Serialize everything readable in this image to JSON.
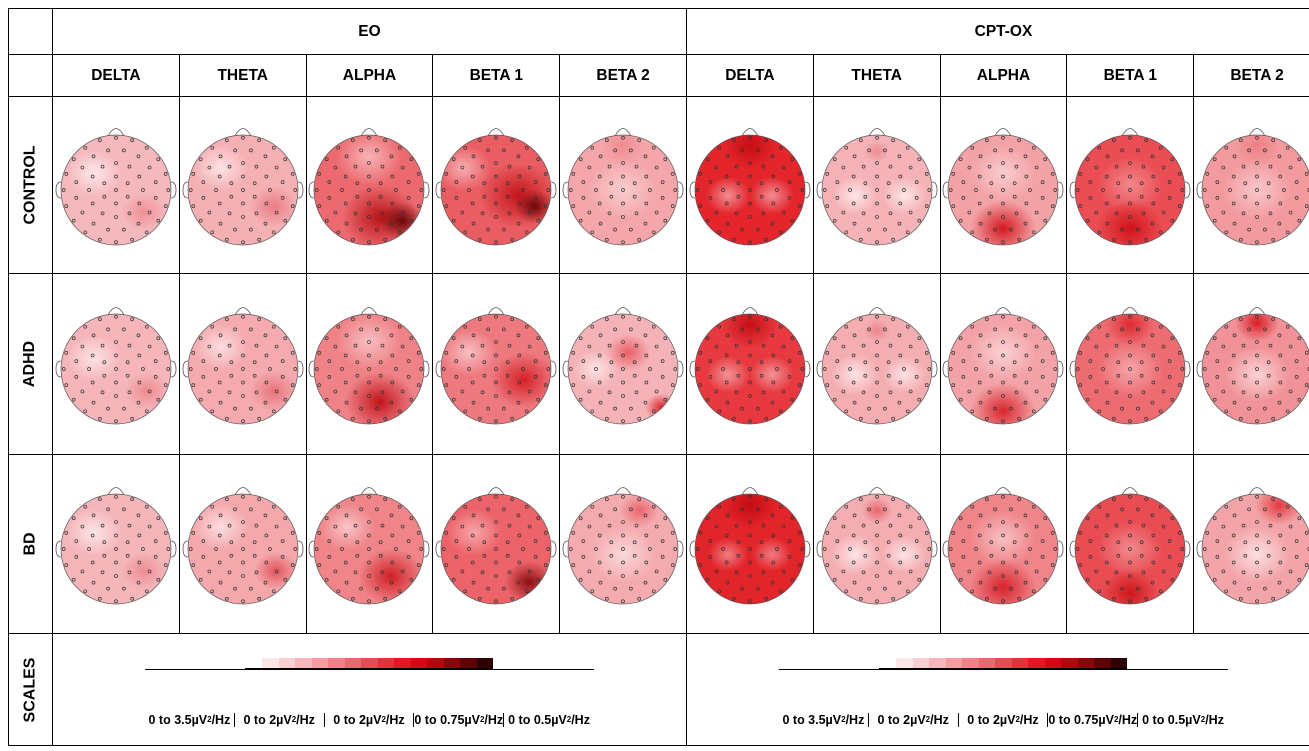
{
  "groups": [
    "EO",
    "CPT-OX"
  ],
  "bands": [
    "DELTA",
    "THETA",
    "ALPHA",
    "BETA 1",
    "BETA 2"
  ],
  "rows": [
    {
      "label": "CONTROL",
      "maps": [
        {
          "base": "#f5b8bc",
          "blobs": [
            [
              0.3,
              0.35,
              0.25,
              "#fde7ea"
            ],
            [
              0.75,
              0.7,
              0.2,
              "#ef8f95"
            ]
          ]
        },
        {
          "base": "#f5b0b4",
          "blobs": [
            [
              0.3,
              0.3,
              0.25,
              "#fde2e5"
            ],
            [
              0.78,
              0.65,
              0.22,
              "#ea7d84"
            ]
          ]
        },
        {
          "base": "#ec6a6f",
          "blobs": [
            [
              0.5,
              0.2,
              0.3,
              "#f7b3b6"
            ],
            [
              0.6,
              0.75,
              0.35,
              "#b81418"
            ],
            [
              0.8,
              0.78,
              0.2,
              "#6a0709"
            ]
          ]
        },
        {
          "base": "#ea5d62",
          "blobs": [
            [
              0.2,
              0.3,
              0.25,
              "#f6aeb2"
            ],
            [
              0.7,
              0.55,
              0.35,
              "#c4161b"
            ],
            [
              0.85,
              0.65,
              0.18,
              "#6e080a"
            ]
          ]
        },
        {
          "base": "#f4a6aa",
          "blobs": [
            [
              0.5,
              0.5,
              0.32,
              "#f9ccce"
            ],
            [
              0.5,
              0.1,
              0.2,
              "#ee8c91"
            ]
          ]
        },
        {
          "base": "#e4262c",
          "blobs": [
            [
              0.3,
              0.55,
              0.2,
              "#f08d92"
            ],
            [
              0.7,
              0.55,
              0.2,
              "#f08d92"
            ],
            [
              0.5,
              0.1,
              0.25,
              "#c40e14"
            ]
          ]
        },
        {
          "base": "#f5b3b7",
          "blobs": [
            [
              0.3,
              0.55,
              0.2,
              "#fde6e8"
            ],
            [
              0.75,
              0.55,
              0.2,
              "#fde6e8"
            ],
            [
              0.5,
              0.15,
              0.12,
              "#ec8d92"
            ]
          ]
        },
        {
          "base": "#f3a2a6",
          "blobs": [
            [
              0.5,
              0.35,
              0.3,
              "#f9cdd0"
            ],
            [
              0.5,
              0.85,
              0.3,
              "#d4191f"
            ]
          ]
        },
        {
          "base": "#ea4d53",
          "blobs": [
            [
              0.5,
              0.45,
              0.3,
              "#f2888d"
            ],
            [
              0.5,
              0.85,
              0.3,
              "#d11319"
            ]
          ]
        },
        {
          "base": "#f29a9e",
          "blobs": [
            [
              0.5,
              0.5,
              0.32,
              "#f9c7ca"
            ],
            [
              0.5,
              0.1,
              0.2,
              "#ee7f85"
            ]
          ]
        }
      ]
    },
    {
      "label": "ADHD",
      "maps": [
        {
          "base": "#f5b5b9",
          "blobs": [
            [
              0.3,
              0.4,
              0.25,
              "#fde3e6"
            ],
            [
              0.78,
              0.7,
              0.2,
              "#ed8a90"
            ]
          ]
        },
        {
          "base": "#f4aaae",
          "blobs": [
            [
              0.3,
              0.3,
              0.25,
              "#fcdde0"
            ],
            [
              0.78,
              0.7,
              0.22,
              "#e8747b"
            ]
          ]
        },
        {
          "base": "#ef8287",
          "blobs": [
            [
              0.5,
              0.25,
              0.3,
              "#f8bec1"
            ],
            [
              0.6,
              0.8,
              0.32,
              "#c2151b"
            ]
          ]
        },
        {
          "base": "#ee7a80",
          "blobs": [
            [
              0.25,
              0.35,
              0.25,
              "#f8bfc2"
            ],
            [
              0.75,
              0.6,
              0.3,
              "#d52026"
            ]
          ]
        },
        {
          "base": "#f5b3b7",
          "blobs": [
            [
              0.55,
              0.35,
              0.2,
              "#ea5f65"
            ],
            [
              0.25,
              0.5,
              0.2,
              "#fde4e6"
            ],
            [
              0.85,
              0.85,
              0.15,
              "#d6262c"
            ]
          ]
        },
        {
          "base": "#e7393f",
          "blobs": [
            [
              0.3,
              0.55,
              0.2,
              "#f29296"
            ],
            [
              0.7,
              0.55,
              0.2,
              "#f29296"
            ],
            [
              0.5,
              0.1,
              0.25,
              "#c50f15"
            ]
          ]
        },
        {
          "base": "#f4adb1",
          "blobs": [
            [
              0.3,
              0.55,
              0.22,
              "#fde2e5"
            ],
            [
              0.75,
              0.55,
              0.2,
              "#fde2e5"
            ],
            [
              0.5,
              0.15,
              0.12,
              "#ec868c"
            ]
          ]
        },
        {
          "base": "#f3a3a7",
          "blobs": [
            [
              0.5,
              0.35,
              0.3,
              "#fad1d4"
            ],
            [
              0.5,
              0.88,
              0.3,
              "#d8262c"
            ]
          ]
        },
        {
          "base": "#ed6c72",
          "blobs": [
            [
              0.5,
              0.5,
              0.3,
              "#f5a4a8"
            ],
            [
              0.5,
              0.1,
              0.22,
              "#de2a30"
            ]
          ]
        },
        {
          "base": "#f09297",
          "blobs": [
            [
              0.5,
              0.55,
              0.3,
              "#fad3d6"
            ],
            [
              0.5,
              0.08,
              0.2,
              "#da1c22"
            ]
          ]
        }
      ]
    },
    {
      "label": "BD",
      "maps": [
        {
          "base": "#f5b6ba",
          "blobs": [
            [
              0.3,
              0.35,
              0.25,
              "#fde5e8"
            ],
            [
              0.75,
              0.7,
              0.2,
              "#ee8d93"
            ]
          ]
        },
        {
          "base": "#f4a8ac",
          "blobs": [
            [
              0.3,
              0.3,
              0.25,
              "#fcdde0"
            ],
            [
              0.8,
              0.7,
              0.2,
              "#e3545b"
            ]
          ]
        },
        {
          "base": "#ef8589",
          "blobs": [
            [
              0.3,
              0.3,
              0.25,
              "#f9c4c7"
            ],
            [
              0.7,
              0.75,
              0.3,
              "#cf1f25"
            ]
          ]
        },
        {
          "base": "#ec6369",
          "blobs": [
            [
              0.3,
              0.35,
              0.25,
              "#f6a7ab"
            ],
            [
              0.8,
              0.8,
              0.22,
              "#8e0d11"
            ]
          ]
        },
        {
          "base": "#f4abaf",
          "blobs": [
            [
              0.5,
              0.55,
              0.3,
              "#fbd8da"
            ],
            [
              0.65,
              0.15,
              0.18,
              "#e9666c"
            ]
          ]
        },
        {
          "base": "#e2252b",
          "blobs": [
            [
              0.3,
              0.55,
              0.18,
              "#ef7c82"
            ],
            [
              0.7,
              0.55,
              0.18,
              "#ef7c82"
            ],
            [
              0.5,
              0.1,
              0.25,
              "#c40c12"
            ]
          ]
        },
        {
          "base": "#f4aeb2",
          "blobs": [
            [
              0.3,
              0.55,
              0.22,
              "#fde3e6"
            ],
            [
              0.75,
              0.55,
              0.2,
              "#fde3e6"
            ],
            [
              0.5,
              0.15,
              0.14,
              "#e8646a"
            ]
          ]
        },
        {
          "base": "#ef8489",
          "blobs": [
            [
              0.5,
              0.4,
              0.3,
              "#f8c0c3"
            ],
            [
              0.5,
              0.85,
              0.3,
              "#d7232a"
            ]
          ]
        },
        {
          "base": "#e94c52",
          "blobs": [
            [
              0.5,
              0.5,
              0.3,
              "#f08a8f"
            ],
            [
              0.5,
              0.9,
              0.25,
              "#cf161c"
            ]
          ]
        },
        {
          "base": "#f3a4a8",
          "blobs": [
            [
              0.5,
              0.55,
              0.3,
              "#fcdfe2"
            ],
            [
              0.7,
              0.1,
              0.22,
              "#e23a40"
            ]
          ]
        }
      ]
    }
  ],
  "scales_label": "SCALES",
  "scale_labels": [
    {
      "pre": "0 to 3.5µV",
      "sup": "2",
      "post": "/Hz"
    },
    {
      "pre": "0 to 2µV",
      "sup": "2",
      "post": "/Hz"
    },
    {
      "pre": "0  to 2µV",
      "sup": "2",
      "post": "/Hz"
    },
    {
      "pre": "0 to 0.75µV",
      "sup": "2",
      "post": "/Hz"
    },
    {
      "pre": "0 to 0.5µV",
      "sup": "2",
      "post": "/Hz"
    }
  ],
  "colorbar": [
    "#ffffff",
    "#fde6e8",
    "#fbd0d3",
    "#f8b6ba",
    "#f59ca1",
    "#f28188",
    "#ee666e",
    "#ea4a53",
    "#e6303a",
    "#e01820",
    "#d30a12",
    "#b5060c",
    "#8c0408",
    "#5e0205",
    "#2e0102"
  ],
  "colors": {
    "map_outline": "#555555",
    "electrode": "#333333"
  }
}
